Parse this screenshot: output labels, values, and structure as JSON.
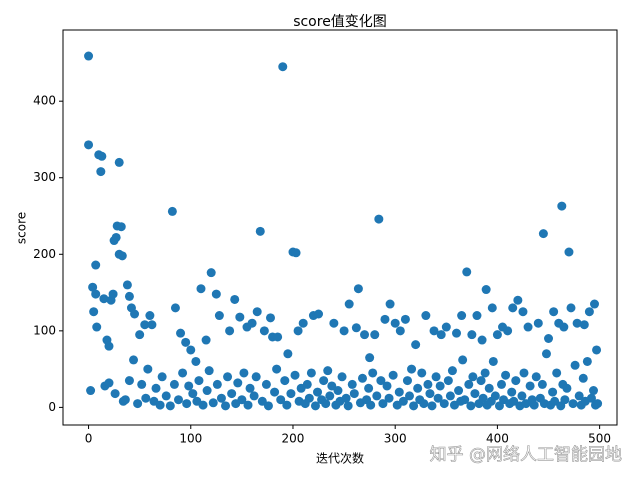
{
  "chart_data": {
    "type": "scatter",
    "title": "score值变化图",
    "xlabel": "迭代次数",
    "ylabel": "score",
    "watermark": "知乎 @网络人工智能园地",
    "color": "#1f77b4",
    "xlim": [
      -25,
      517
    ],
    "ylim": [
      -23,
      493
    ],
    "xticks": [
      0,
      100,
      200,
      300,
      400,
      500
    ],
    "yticks": [
      0,
      100,
      200,
      300,
      400
    ],
    "x": [
      0,
      0,
      2,
      4,
      5,
      7,
      7,
      8,
      10,
      12,
      13,
      15,
      18,
      20,
      22,
      24,
      25,
      27,
      28,
      30,
      30,
      33,
      32,
      38,
      40,
      42,
      45,
      50,
      55,
      60,
      62,
      82,
      85,
      90,
      95,
      100,
      105,
      110,
      115,
      120,
      125,
      128,
      138,
      143,
      148,
      155,
      160,
      165,
      168,
      172,
      178,
      180,
      185,
      190,
      195,
      200,
      203,
      205,
      210,
      220,
      225,
      240,
      250,
      255,
      262,
      264,
      270,
      275,
      280,
      284,
      290,
      295,
      300,
      305,
      310,
      320,
      330,
      338,
      345,
      350,
      360,
      365,
      370,
      375,
      380,
      385,
      389,
      395,
      400,
      405,
      410,
      415,
      420,
      425,
      430,
      440,
      445,
      450,
      455,
      460,
      463,
      465,
      470,
      472,
      478,
      485,
      490,
      495,
      497,
      16,
      20,
      26,
      34,
      36,
      40,
      44,
      48,
      52,
      56,
      58,
      64,
      66,
      70,
      72,
      76,
      80,
      84,
      88,
      92,
      96,
      98,
      102,
      106,
      108,
      112,
      116,
      118,
      122,
      126,
      130,
      134,
      136,
      140,
      144,
      146,
      150,
      152,
      156,
      158,
      162,
      164,
      170,
      174,
      176,
      182,
      184,
      188,
      192,
      194,
      198,
      202,
      206,
      208,
      212,
      214,
      216,
      218,
      222,
      224,
      228,
      230,
      232,
      234,
      236,
      238,
      242,
      244,
      246,
      248,
      252,
      254,
      258,
      260,
      266,
      268,
      272,
      274,
      276,
      278,
      282,
      286,
      288,
      292,
      294,
      298,
      302,
      304,
      308,
      312,
      314,
      316,
      318,
      322,
      324,
      326,
      328,
      332,
      334,
      336,
      340,
      342,
      344,
      348,
      352,
      354,
      356,
      358,
      362,
      364,
      366,
      368,
      372,
      374,
      376,
      378,
      382,
      384,
      386,
      388,
      390,
      392,
      394,
      396,
      398,
      402,
      404,
      406,
      408,
      412,
      414,
      416,
      418,
      422,
      424,
      426,
      428,
      432,
      434,
      436,
      438,
      442,
      444,
      446,
      448,
      452,
      454,
      456,
      458,
      462,
      464,
      466,
      468,
      474,
      476,
      480,
      482,
      484,
      486,
      488,
      492,
      494,
      496,
      498
    ],
    "values": [
      459,
      343,
      22,
      157,
      125,
      186,
      148,
      105,
      330,
      308,
      328,
      142,
      88,
      80,
      140,
      148,
      218,
      222,
      237,
      320,
      200,
      198,
      236,
      160,
      145,
      130,
      122,
      95,
      108,
      120,
      108,
      256,
      130,
      97,
      85,
      75,
      60,
      155,
      88,
      176,
      148,
      120,
      100,
      141,
      118,
      105,
      110,
      125,
      230,
      100,
      117,
      92,
      92,
      445,
      70,
      203,
      202,
      100,
      110,
      120,
      122,
      110,
      100,
      135,
      104,
      155,
      95,
      65,
      95,
      246,
      115,
      135,
      110,
      100,
      115,
      82,
      120,
      100,
      95,
      105,
      97,
      120,
      177,
      95,
      120,
      88,
      154,
      130,
      95,
      105,
      100,
      130,
      140,
      125,
      105,
      110,
      227,
      90,
      125,
      110,
      263,
      105,
      203,
      130,
      110,
      108,
      125,
      135,
      75,
      28,
      32,
      18,
      8,
      10,
      35,
      62,
      5,
      30,
      12,
      50,
      8,
      25,
      3,
      40,
      15,
      2,
      30,
      10,
      45,
      5,
      28,
      18,
      8,
      35,
      3,
      22,
      48,
      6,
      30,
      12,
      2,
      40,
      18,
      5,
      32,
      10,
      45,
      3,
      25,
      15,
      40,
      8,
      30,
      2,
      20,
      50,
      10,
      35,
      3,
      18,
      42,
      8,
      25,
      5,
      30,
      12,
      45,
      2,
      20,
      10,
      35,
      5,
      48,
      15,
      28,
      3,
      22,
      8,
      40,
      12,
      2,
      30,
      18,
      6,
      38,
      10,
      25,
      3,
      45,
      15,
      35,
      5,
      28,
      12,
      42,
      3,
      20,
      8,
      35,
      15,
      50,
      2,
      25,
      10,
      45,
      5,
      30,
      18,
      2,
      40,
      12,
      28,
      5,
      35,
      15,
      48,
      3,
      22,
      8,
      62,
      10,
      30,
      2,
      40,
      18,
      5,
      35,
      12,
      45,
      3,
      25,
      8,
      60,
      15,
      2,
      30,
      10,
      42,
      5,
      20,
      8,
      35,
      2,
      15,
      45,
      5,
      28,
      10,
      3,
      40,
      12,
      30,
      5,
      70,
      3,
      20,
      8,
      45,
      2,
      30,
      10,
      25,
      5,
      55,
      15,
      3,
      38,
      8,
      60,
      12,
      22,
      3,
      5
    ]
  }
}
